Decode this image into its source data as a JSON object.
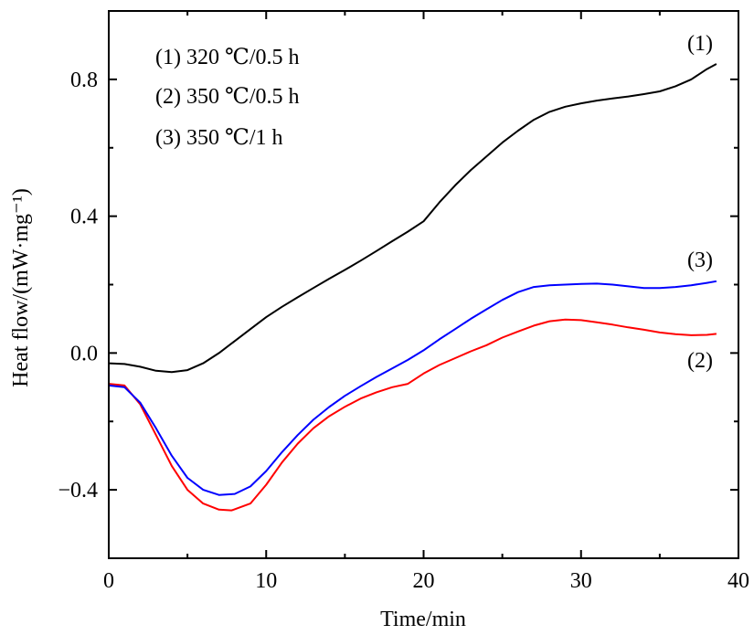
{
  "chart_data": {
    "type": "line",
    "title": "",
    "xlabel": "Time/min",
    "ylabel": "Heat flow/(mW·mg⁻¹)",
    "xlim": [
      0,
      40
    ],
    "ylim": [
      -0.6,
      1.0
    ],
    "x_ticks": [
      0,
      10,
      20,
      30,
      40
    ],
    "x_tick_labels": [
      "0",
      "10",
      "20",
      "30",
      "40"
    ],
    "y_ticks": [
      -0.4,
      0.0,
      0.4,
      0.8
    ],
    "y_tick_labels": [
      "−0.4",
      "0.0",
      "0.4",
      "0.8"
    ],
    "grid": false,
    "legend_entries": [
      "(1) 320 ℃/0.5 h",
      "(2) 350 ℃/0.5 h",
      "(3) 350 ℃/1 h"
    ],
    "legend_placement": "top-left",
    "series": [
      {
        "name": "(1)",
        "color": "#000000",
        "x": [
          0,
          1,
          2,
          3,
          4,
          5,
          6,
          7,
          8,
          9,
          10,
          11,
          12,
          13,
          14,
          15,
          16,
          17,
          18,
          19,
          20,
          21,
          22,
          23,
          24,
          25,
          26,
          27,
          28,
          29,
          30,
          31,
          32,
          33,
          34,
          35,
          36,
          37,
          38,
          38.6
        ],
        "y": [
          -0.03,
          -0.032,
          -0.04,
          -0.052,
          -0.056,
          -0.05,
          -0.03,
          0.0,
          0.035,
          0.07,
          0.105,
          0.135,
          0.163,
          0.19,
          0.217,
          0.243,
          0.27,
          0.298,
          0.327,
          0.355,
          0.385,
          0.44,
          0.49,
          0.535,
          0.575,
          0.615,
          0.65,
          0.682,
          0.705,
          0.72,
          0.73,
          0.738,
          0.744,
          0.75,
          0.757,
          0.765,
          0.78,
          0.8,
          0.83,
          0.845
        ]
      },
      {
        "name": "(2)",
        "color": "#ff0000",
        "x": [
          0,
          1,
          2,
          3,
          4,
          5,
          6,
          7,
          7.8,
          9,
          10,
          11,
          12,
          13,
          14,
          15,
          16,
          17,
          18,
          19,
          20,
          21,
          22,
          23,
          24,
          25,
          26,
          27,
          28,
          29,
          30,
          31,
          32,
          33,
          34,
          35,
          36,
          37,
          38,
          38.6
        ],
        "y": [
          -0.09,
          -0.095,
          -0.15,
          -0.24,
          -0.33,
          -0.4,
          -0.44,
          -0.458,
          -0.46,
          -0.44,
          -0.385,
          -0.32,
          -0.265,
          -0.22,
          -0.185,
          -0.157,
          -0.133,
          -0.115,
          -0.1,
          -0.09,
          -0.06,
          -0.035,
          -0.015,
          0.005,
          0.023,
          0.045,
          0.063,
          0.08,
          0.093,
          0.098,
          0.096,
          0.09,
          0.083,
          0.075,
          0.068,
          0.06,
          0.055,
          0.052,
          0.053,
          0.056
        ]
      },
      {
        "name": "(3)",
        "color": "#0000ff",
        "x": [
          0,
          1,
          2,
          3,
          4,
          5,
          6,
          7,
          8,
          9,
          10,
          11,
          12,
          13,
          14,
          15,
          16,
          17,
          18,
          19,
          20,
          21,
          22,
          23,
          24,
          25,
          26,
          27,
          28,
          29,
          30,
          31,
          32,
          33,
          34,
          35,
          36,
          37,
          38,
          38.6
        ],
        "y": [
          -0.095,
          -0.1,
          -0.145,
          -0.22,
          -0.3,
          -0.365,
          -0.4,
          -0.415,
          -0.412,
          -0.39,
          -0.345,
          -0.29,
          -0.24,
          -0.195,
          -0.158,
          -0.125,
          -0.097,
          -0.07,
          -0.045,
          -0.02,
          0.008,
          0.04,
          0.07,
          0.1,
          0.128,
          0.155,
          0.178,
          0.193,
          0.198,
          0.2,
          0.202,
          0.203,
          0.2,
          0.195,
          0.19,
          0.19,
          0.193,
          0.198,
          0.205,
          0.21
        ]
      }
    ],
    "curve_labels": [
      {
        "text": "(1)",
        "near_series": "(1)"
      },
      {
        "text": "(3)",
        "near_series": "(3)"
      },
      {
        "text": "(2)",
        "near_series": "(2)"
      }
    ]
  }
}
